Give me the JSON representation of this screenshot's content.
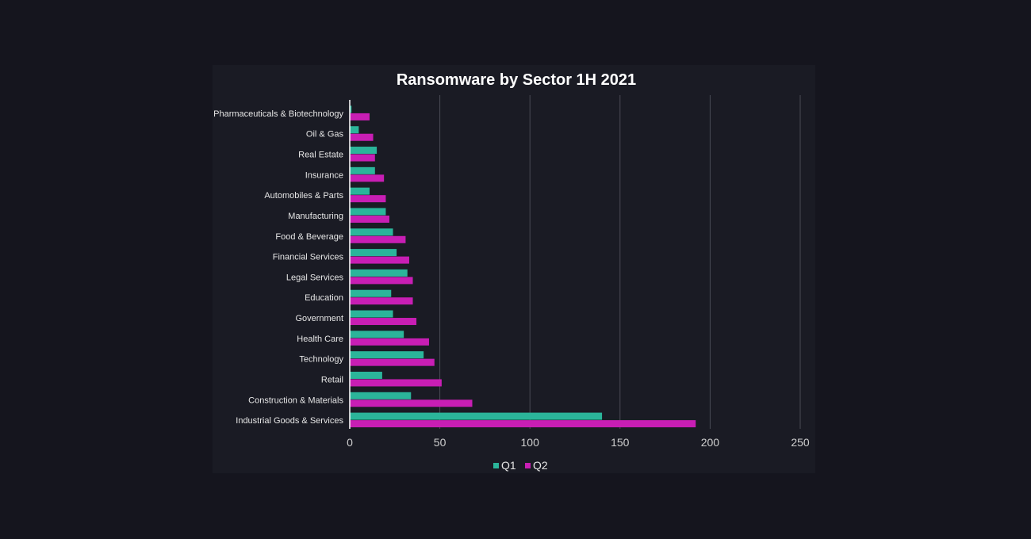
{
  "chart_data": {
    "type": "bar",
    "orientation": "horizontal",
    "title": "Ransomware by Sector 1H 2021",
    "xlabel": "",
    "ylabel": "",
    "categories": [
      "Pharmaceuticals & Biotechnology",
      "Oil & Gas",
      "Real Estate",
      "Insurance",
      "Automobiles & Parts",
      "Manufacturing",
      "Food & Beverage",
      "Financial Services",
      "Legal Services",
      "Education",
      "Government",
      "Health Care",
      "Technology",
      "Retail",
      "Construction & Materials",
      "Industrial Goods & Services"
    ],
    "series": [
      {
        "name": "Q1",
        "color": "#2bb59a",
        "values": [
          1,
          5,
          15,
          14,
          11,
          20,
          24,
          26,
          32,
          23,
          24,
          30,
          41,
          18,
          34,
          140
        ]
      },
      {
        "name": "Q2",
        "color": "#c81eb4",
        "values": [
          11,
          13,
          14,
          19,
          20,
          22,
          31,
          33,
          35,
          35,
          37,
          44,
          47,
          51,
          68,
          192
        ]
      }
    ],
    "xlim": [
      0,
      250
    ],
    "xticks": [
      0,
      50,
      100,
      150,
      200,
      250
    ],
    "xtick_labels": [
      "0",
      "50",
      "100",
      "150",
      "200",
      "250"
    ],
    "grid": "vertical",
    "legend": "bottom-center"
  }
}
